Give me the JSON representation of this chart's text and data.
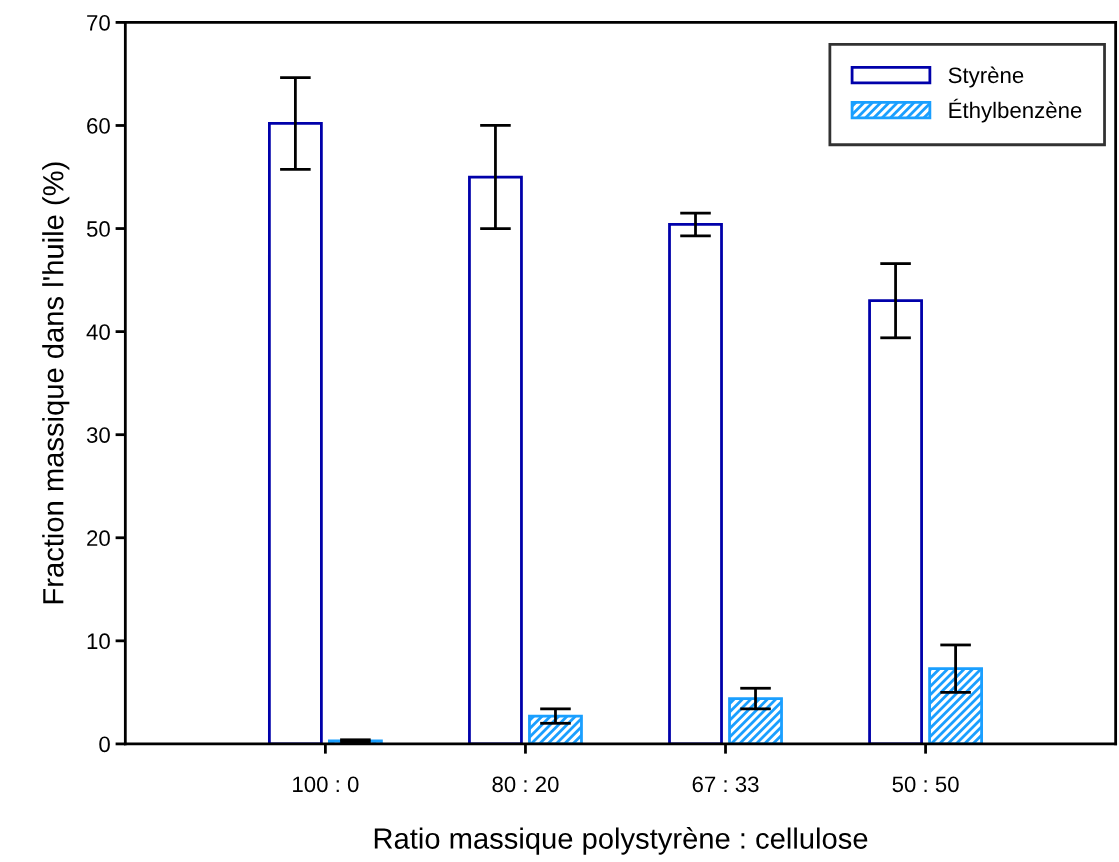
{
  "chart_data": {
    "type": "bar",
    "xlabel": "Ratio massique polystyrène : cellulose",
    "ylabel": "Fraction massique dans l'huile (%)",
    "categories": [
      "100 : 0",
      "80 : 20",
      "67 : 33",
      "50 : 50"
    ],
    "series": [
      {
        "name": "Styrène",
        "color": "#0000aa",
        "values": [
          60.2,
          55.0,
          50.4,
          43.0
        ],
        "errors": [
          4.45,
          5.0,
          1.1,
          3.6
        ]
      },
      {
        "name": "Éthylbenzène",
        "color": "#1a9fff",
        "values": [
          0.3,
          2.7,
          4.4,
          7.3
        ],
        "errors": [
          0.1,
          0.7,
          1.0,
          2.3
        ]
      }
    ],
    "ylim": [
      0,
      70
    ],
    "yticks": [
      0,
      10,
      20,
      30,
      40,
      50,
      60,
      70
    ],
    "grid": false,
    "legend": "top right"
  }
}
